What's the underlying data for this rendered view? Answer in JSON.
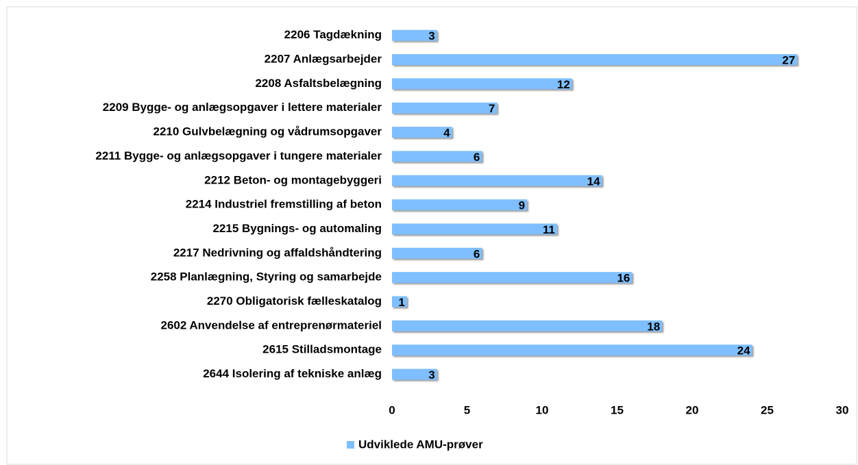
{
  "chart_data": {
    "type": "bar",
    "orientation": "horizontal",
    "categories": [
      "2206 Tagdækning",
      "2207 Anlægsarbejder",
      "2208 Asfaltsbelægning",
      "2209 Bygge- og anlægsopgaver i lettere materialer",
      "2210 Gulvbelægning og vådrumsopgaver",
      "2211 Bygge- og anlægsopgaver i tungere materialer",
      "2212 Beton- og montagebyggeri",
      "2214 Industriel fremstilling af beton",
      "2215 Bygnings- og automaling",
      "2217 Nedrivning og affaldshåndtering",
      "2258 Planlægning, Styring og samarbejde",
      "2270 Obligatorisk fælleskatalog",
      "2602 Anvendelse af entreprenørmateriel",
      "2615 Stilladsmontage",
      "2644 Isolering af tekniske anlæg"
    ],
    "series": [
      {
        "name": "Udviklede AMU-prøver",
        "color": "#7fbfff",
        "values": [
          3,
          27,
          12,
          7,
          4,
          6,
          14,
          9,
          11,
          6,
          16,
          1,
          18,
          24,
          3
        ]
      }
    ],
    "xlim": [
      0,
      30
    ],
    "xticks": [
      0,
      5,
      10,
      15,
      20,
      25,
      30
    ],
    "grid": false,
    "legend": "bottom"
  }
}
